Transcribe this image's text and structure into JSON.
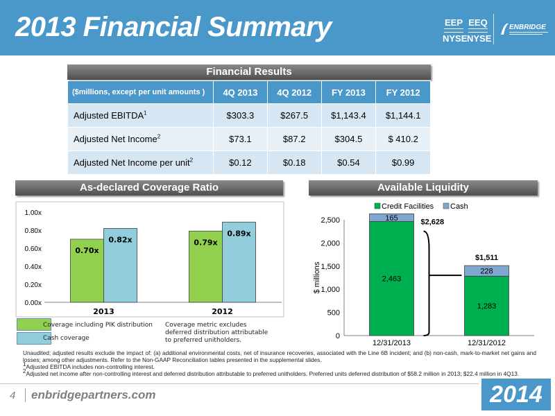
{
  "header": {
    "title": "2013 Financial Summary",
    "tickers": [
      {
        "symbol": "EEP",
        "exchange": "NYSE"
      },
      {
        "symbol": "EEQ",
        "exchange": "NYSE"
      }
    ],
    "logo_text": "ENBRIDGE",
    "brand_color": "#4a97c9"
  },
  "financial_results": {
    "title": "Financial Results",
    "columns": [
      "($millions, except per unit amounts )",
      "4Q 2013",
      "4Q 2012",
      "FY 2013",
      "FY 2012"
    ],
    "rows": [
      {
        "label": "Adjusted EBITDA",
        "sup": "1",
        "values": [
          "$303.3",
          "$267.5",
          "$1,143.4",
          "$1,144.1"
        ]
      },
      {
        "label": "Adjusted Net Income",
        "sup": "2",
        "values": [
          "$73.1",
          "$87.2",
          "$304.5",
          "$ 410.2"
        ]
      },
      {
        "label": "Adjusted Net Income per unit",
        "sup": "2",
        "values": [
          "$0.12",
          "$0.18",
          "$0.54",
          "$0.99"
        ]
      }
    ]
  },
  "coverage": {
    "section_title": "As-declared Coverage Ratio",
    "legend": [
      "Coverage including PIK distribution",
      "Cash coverage"
    ],
    "note": "Coverage metric excludes deferred distribution attributable to preferred unitholders.",
    "colors": {
      "pik": "#92d050",
      "cash": "#92cddc"
    },
    "chart_data": {
      "type": "bar",
      "categories": [
        "2013",
        "2012"
      ],
      "series": [
        {
          "name": "Coverage including PIK distribution",
          "values": [
            0.7,
            0.79
          ]
        },
        {
          "name": "Cash coverage",
          "values": [
            0.82,
            0.89
          ]
        }
      ],
      "data_labels": [
        [
          "0.70x",
          "0.79x"
        ],
        [
          "0.82x",
          "0.89x"
        ]
      ],
      "yticks": [
        "0.00x",
        "0.20x",
        "0.40x",
        "0.60x",
        "0.80x",
        "1.00x"
      ],
      "ylim": [
        0,
        1.0
      ]
    }
  },
  "liquidity": {
    "section_title": "Available Liquidity",
    "colors": {
      "credit": "#00b050",
      "cash": "#7fa7d0"
    },
    "chart_data": {
      "type": "bar",
      "stacked": true,
      "categories": [
        "12/31/2013",
        "12/31/2012"
      ],
      "series": [
        {
          "name": "Credit Facilities",
          "values": [
            2463,
            1283
          ]
        },
        {
          "name": "Cash",
          "values": [
            165,
            228
          ]
        }
      ],
      "data_labels": [
        [
          "2,463",
          "1,283"
        ],
        [
          "165",
          "228"
        ]
      ],
      "totals": [
        "$2,628",
        "$1,511"
      ],
      "ylabel": "$ millions",
      "yticks": [
        "0",
        "500",
        "1,000",
        "1,500",
        "2,000",
        "2,500"
      ],
      "ylim": [
        0,
        2500
      ],
      "legend_position": "top"
    }
  },
  "footnotes": {
    "main": "Unaudited; adjusted results exclude the impact of: (a) additional environmental costs, net of insurance recoveries, associated with the Line 6B incident; and (b) non-cash, mark-to-market net gains and losses; among other adjustments. Refer to the Non-GAAP Reconciliation tables presented in the supplemental slides.",
    "note1": "Adjusted EBITDA includes non-controlling interest.",
    "note2": "Adjusted net income after non-controlling interest and deferred distribution attributable to preferred unitholders. Preferred units deferred distribution of $58.2 million in 2013; $22.4 million in 4Q13."
  },
  "footer": {
    "page_number": "4",
    "website": "enbridgepartners.com",
    "year": "2014"
  }
}
